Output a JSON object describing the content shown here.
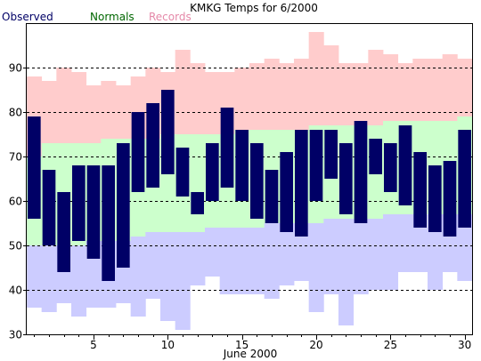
{
  "chart_data": {
    "type": "bar",
    "title": "KMKG Temps for 6/2000",
    "xlabel": "June 2000",
    "ylabel": "",
    "legend": [
      {
        "name": "Observed",
        "color": "#000066"
      },
      {
        "name": "Normals",
        "color": "#006600"
      },
      {
        "name": "Records",
        "color": "#e589a9"
      }
    ],
    "legend_placement": "top-left",
    "ylim": [
      30,
      100
    ],
    "xlim": [
      0.5,
      30.5
    ],
    "yticks": [
      30,
      40,
      50,
      60,
      70,
      80,
      90
    ],
    "xticks": [
      5,
      10,
      15,
      20,
      25,
      30
    ],
    "grid": "dashed horizontal at each y tick",
    "colors": {
      "records_band": "#ffcccc",
      "normals_band": "#ccffcc",
      "below_normal_band": "#ccccff",
      "observed_bar": "#000066",
      "grid": "#000000"
    },
    "days": [
      1,
      2,
      3,
      4,
      5,
      6,
      7,
      8,
      9,
      10,
      11,
      12,
      13,
      14,
      15,
      16,
      17,
      18,
      19,
      20,
      21,
      22,
      23,
      24,
      25,
      26,
      27,
      28,
      29,
      30
    ],
    "series": [
      {
        "name": "Record High",
        "values": [
          88,
          87,
          90,
          89,
          86,
          87,
          86,
          88,
          90,
          89,
          94,
          91,
          89,
          89,
          90,
          91,
          92,
          91,
          92,
          98,
          95,
          91,
          91,
          94,
          93,
          91,
          92,
          92,
          93,
          92
        ]
      },
      {
        "name": "Normal High",
        "values": [
          70,
          73,
          73,
          73,
          73,
          74,
          74,
          74,
          74,
          75,
          75,
          75,
          75,
          75,
          76,
          76,
          76,
          76,
          76,
          77,
          77,
          77,
          77,
          77,
          78,
          78,
          78,
          78,
          78,
          79
        ]
      },
      {
        "name": "Normal Low",
        "values": [
          50,
          50,
          50,
          50,
          51,
          51,
          51,
          52,
          53,
          53,
          53,
          53,
          54,
          54,
          54,
          54,
          55,
          55,
          55,
          55,
          56,
          56,
          56,
          56,
          57,
          57,
          57,
          57,
          57,
          57
        ]
      },
      {
        "name": "Record Low",
        "values": [
          36,
          35,
          37,
          34,
          36,
          36,
          37,
          34,
          38,
          33,
          31,
          41,
          43,
          39,
          39,
          39,
          38,
          41,
          42,
          35,
          39,
          32,
          39,
          40,
          40,
          44,
          44,
          40,
          44,
          42
        ]
      },
      {
        "name": "Observed High",
        "values": [
          79,
          67,
          62,
          68,
          68,
          68,
          73,
          80,
          82,
          85,
          72,
          62,
          73,
          81,
          76,
          73,
          67,
          71,
          76,
          76,
          76,
          73,
          78,
          74,
          73,
          77,
          71,
          68,
          69,
          76
        ]
      },
      {
        "name": "Observed Low",
        "values": [
          56,
          50,
          44,
          51,
          47,
          42,
          45,
          62,
          63,
          66,
          61,
          57,
          60,
          63,
          60,
          56,
          55,
          53,
          52,
          60,
          65,
          57,
          55,
          66,
          62,
          59,
          54,
          53,
          52,
          54
        ]
      }
    ]
  }
}
